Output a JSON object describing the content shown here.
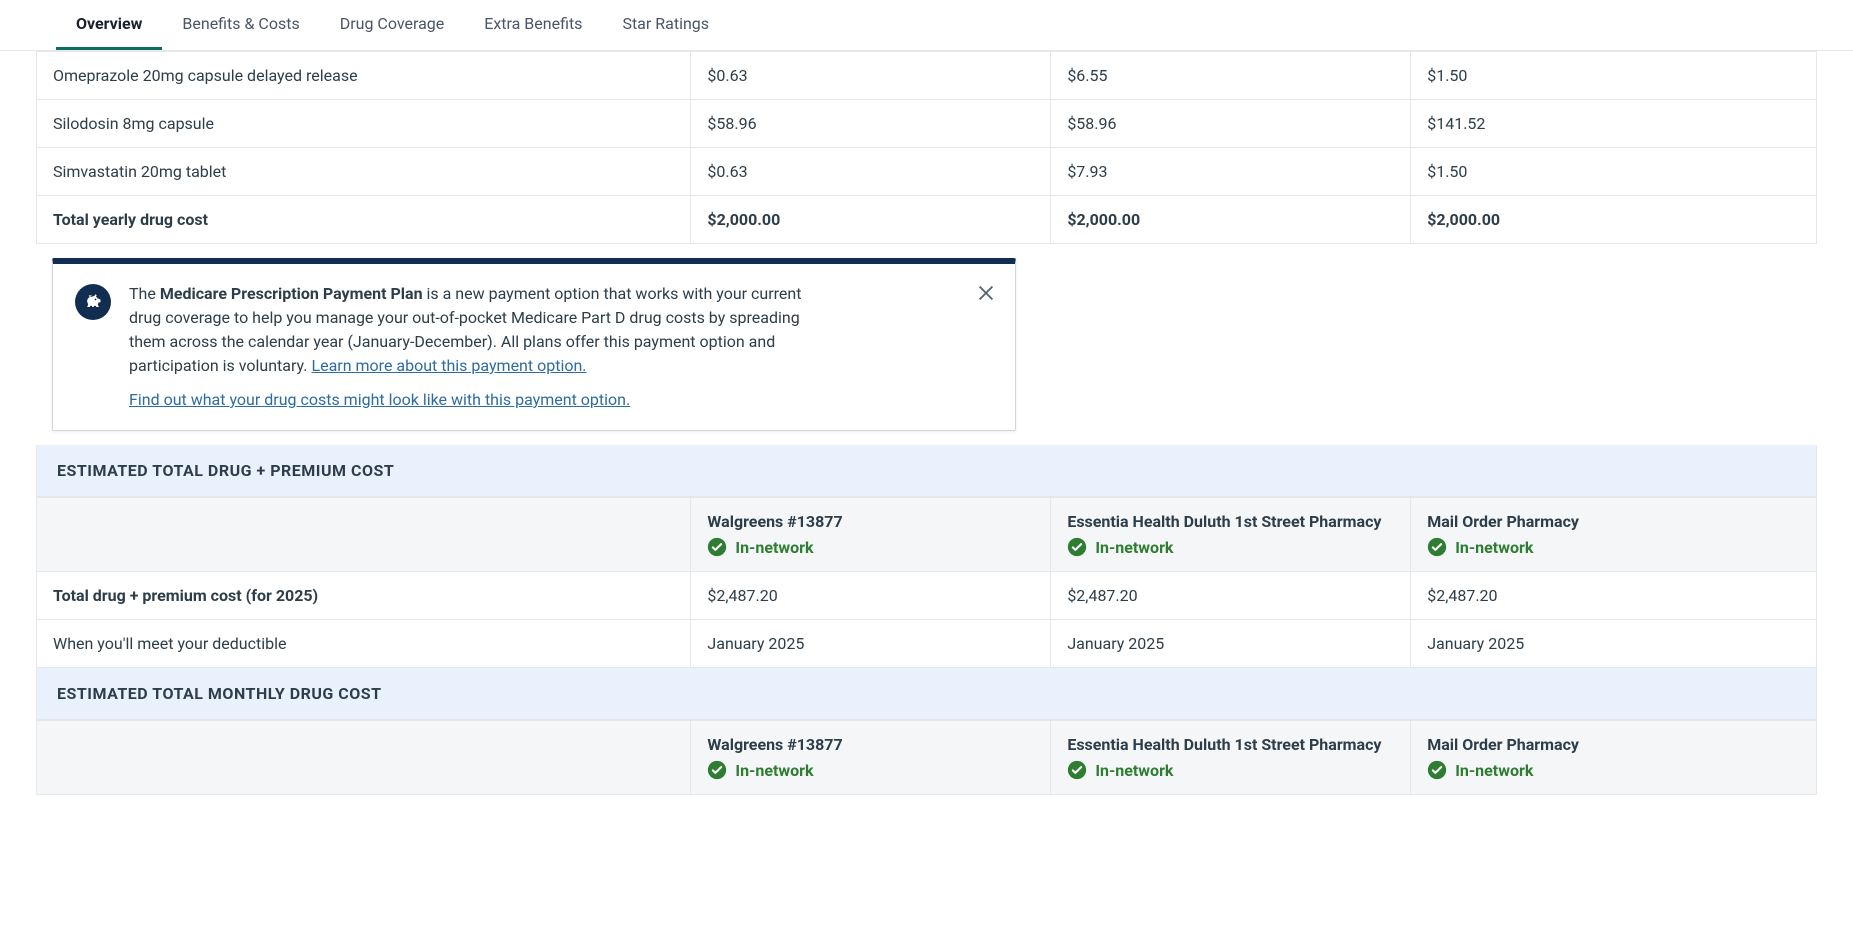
{
  "tabs": [
    {
      "label": "Overview",
      "active": true
    },
    {
      "label": "Benefits & Costs",
      "active": false
    },
    {
      "label": "Drug Coverage",
      "active": false
    },
    {
      "label": "Extra Benefits",
      "active": false
    },
    {
      "label": "Star Ratings",
      "active": false
    }
  ],
  "drugTable": {
    "rows": [
      {
        "name": "Omeprazole 20mg capsule delayed release",
        "c1": "$0.63",
        "c2": "$6.55",
        "c3": "$1.50",
        "bold": false
      },
      {
        "name": "Silodosin 8mg capsule",
        "c1": "$58.96",
        "c2": "$58.96",
        "c3": "$141.52",
        "bold": false
      },
      {
        "name": "Simvastatin 20mg tablet",
        "c1": "$0.63",
        "c2": "$7.93",
        "c3": "$1.50",
        "bold": false
      },
      {
        "name": "Total yearly drug cost",
        "c1": "$2,000.00",
        "c2": "$2,000.00",
        "c3": "$2,000.00",
        "bold": true
      }
    ]
  },
  "infoCard": {
    "boldIntro": "Medicare Prescription Payment Plan",
    "body": " is a new payment option that works with your current drug coverage to help you manage your out-of-pocket Medicare Part D drug costs by spreading them across the calendar year (January-December). All plans offer this payment option and participation is voluntary. ",
    "link1": "Learn more about this payment option.",
    "link2": "Find out what your drug costs might look like with this payment option."
  },
  "pharmacies": [
    {
      "name": "Walgreens #13877",
      "status": "In-network"
    },
    {
      "name": "Essentia Health Duluth 1st Street Pharmacy",
      "status": "In-network"
    },
    {
      "name": "Mail Order Pharmacy",
      "status": "In-network"
    }
  ],
  "totalSection": {
    "title": "ESTIMATED TOTAL DRUG + PREMIUM COST",
    "rows": [
      {
        "label": "Total drug + premium cost (for 2025)",
        "v1": "$2,487.20",
        "v2": "$2,487.20",
        "v3": "$2,487.20",
        "bold": true
      },
      {
        "label": "When you'll meet your deductible",
        "v1": "January 2025",
        "v2": "January 2025",
        "v3": "January 2025",
        "bold": false
      }
    ]
  },
  "monthlySection": {
    "title": "ESTIMATED TOTAL MONTHLY DRUG COST"
  }
}
